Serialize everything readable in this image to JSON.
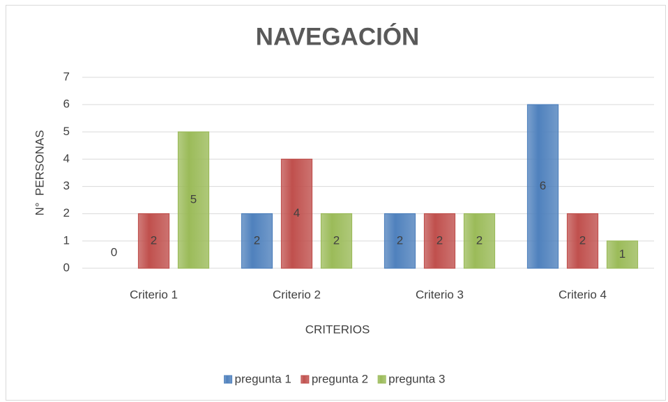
{
  "chart_data": {
    "type": "bar",
    "title": "NAVEGACIÓN",
    "x_label": "CRITERIOS",
    "y_label": "N°  PERSONAS",
    "categories": [
      "Criterio 1",
      "Criterio 2",
      "Criterio 3",
      "Criterio 4"
    ],
    "series": [
      {
        "name": "pregunta 1",
        "color": "#4f81bd",
        "values": [
          0,
          2,
          2,
          6
        ]
      },
      {
        "name": "pregunta 2",
        "color": "#c0504d",
        "values": [
          2,
          4,
          2,
          2
        ]
      },
      {
        "name": "pregunta 3",
        "color": "#9bbb59",
        "values": [
          5,
          2,
          2,
          1
        ]
      }
    ],
    "ylim": [
      0,
      7
    ],
    "yticks": [
      0,
      1,
      2,
      3,
      4,
      5,
      6,
      7
    ],
    "grid": true,
    "legend": "bottom"
  }
}
